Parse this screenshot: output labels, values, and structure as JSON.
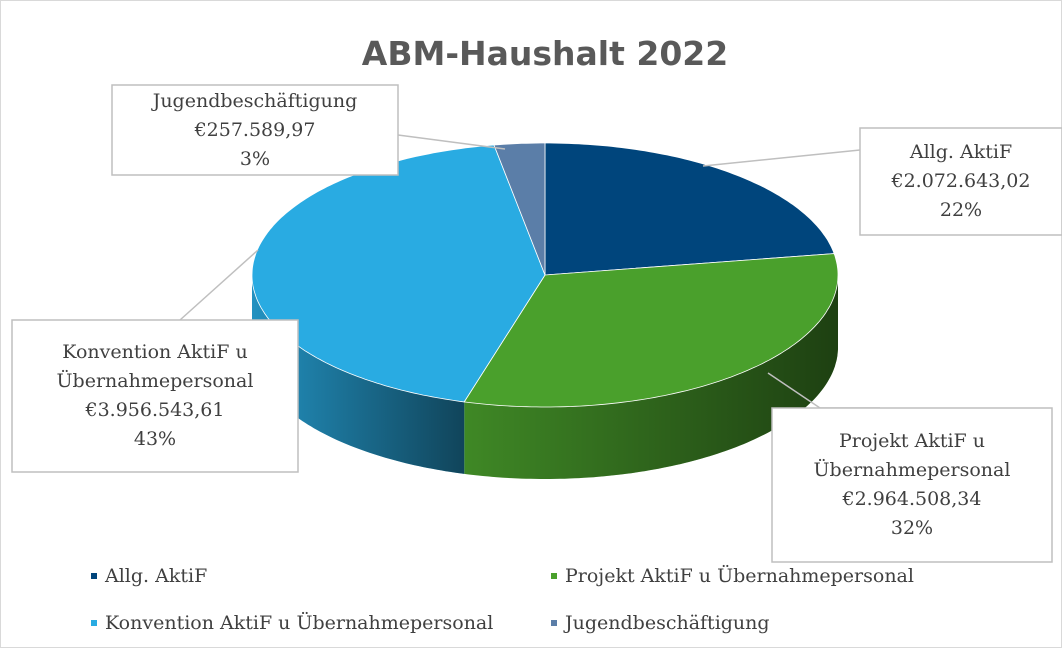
{
  "chart_data": {
    "type": "pie",
    "title": "ABM-Haushalt 2022",
    "categories": [
      "Allg. AktiF",
      "Projekt AktiF u Übernahmepersonal",
      "Konvention AktiF u Übernahmepersonal",
      "Jugendbeschäftigung"
    ],
    "values": [
      2072643.02,
      2964508.34,
      3956543.61,
      257589.97
    ],
    "value_labels": [
      "€2.072.643,02",
      "€2.964.508,34",
      "€3.956.543,61",
      "€257.589,97"
    ],
    "percents": [
      22,
      32,
      43,
      3
    ],
    "percent_labels": [
      "22%",
      "32%",
      "43%",
      "3%"
    ],
    "colors": [
      "#00457c",
      "#4aa02c",
      "#29abe2",
      "#5b7ea8"
    ]
  }
}
